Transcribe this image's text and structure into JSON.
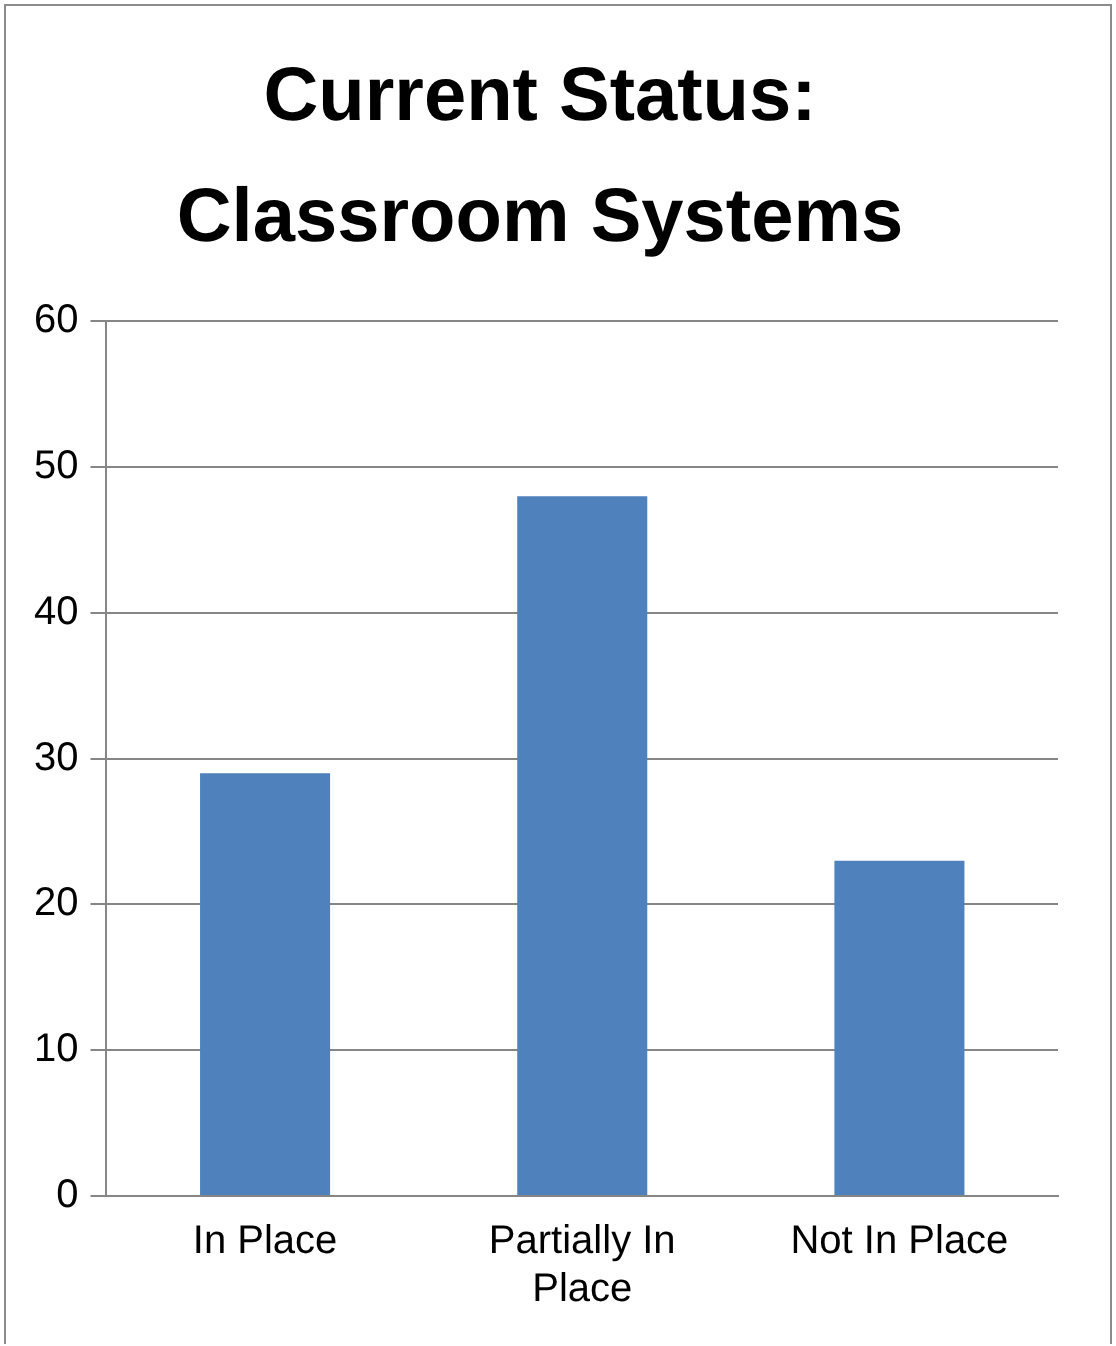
{
  "chart_data": {
    "type": "bar",
    "title": "Current Status: Classroom Systems",
    "categories": [
      "In Place",
      "Partially In Place",
      "Not In Place"
    ],
    "values": [
      29,
      48,
      23
    ],
    "color": "#4f81bd",
    "ylim": [
      0,
      60
    ],
    "yticks": [
      0,
      10,
      20,
      30,
      40,
      50,
      60
    ],
    "grid": "y",
    "legend": false
  }
}
